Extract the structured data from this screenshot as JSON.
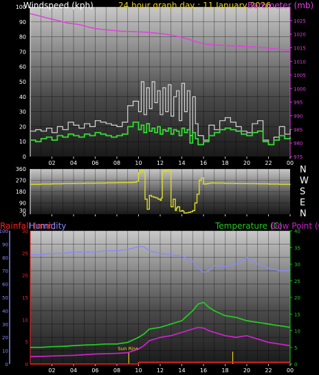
{
  "header": {
    "windspeed_label": "Windspeed (kph)",
    "date_title": "24 hour graph day : 11 January 2026",
    "barometer_label": "Barometer (mb)"
  },
  "direction_letters": [
    "N",
    "W",
    "S",
    "E",
    "N"
  ],
  "lower_labels": {
    "rainfall": "Rainfall (mm)",
    "humidity": "Humidity",
    "temperature": "Temperature (C)",
    "dewpoint": "Dew Point (C)",
    "sunrise": "Sun Rise"
  },
  "colors": {
    "wind_speed": "#d8d8d8",
    "wind_avg": "#33dd33",
    "barometer": "#e040e0",
    "direction": "#dddd22",
    "rainfall": "#ff2020",
    "humidity": "#8888ff",
    "temperature": "#22cc22",
    "dewpoint": "#cc22cc",
    "date_title": "#e8d020"
  },
  "chart_data": [
    {
      "type": "line",
      "title": "24 hour graph day : 11 January 2026",
      "x_hours": [
        0,
        0.5,
        1,
        1.5,
        2,
        2.5,
        3,
        3.5,
        4,
        4.5,
        5,
        5.5,
        6,
        6.5,
        7,
        7.5,
        8,
        8.5,
        9,
        9.5,
        10,
        10.25,
        10.5,
        10.75,
        11,
        11.25,
        11.5,
        11.75,
        12,
        12.25,
        12.5,
        12.75,
        13,
        13.25,
        13.5,
        13.75,
        14,
        14.25,
        14.5,
        14.75,
        15,
        15.25,
        15.5,
        16,
        16.5,
        17,
        17.5,
        18,
        18.5,
        19,
        19.5,
        20,
        20.5,
        21,
        21.5,
        22,
        22.5,
        23,
        23.5,
        24
      ],
      "xtick_labels": [
        "02",
        "04",
        "06",
        "08",
        "10",
        "12",
        "14",
        "16",
        "18",
        "20",
        "22",
        "00"
      ],
      "xtick_hours": [
        2,
        4,
        6,
        8,
        10,
        12,
        14,
        16,
        18,
        20,
        22,
        24
      ],
      "left_axis": {
        "label": "Windspeed (kph)",
        "ylim": [
          0,
          100
        ],
        "ticks": [
          0,
          10,
          20,
          30,
          40,
          50,
          60,
          70,
          80,
          90,
          100
        ]
      },
      "right_axis": {
        "label": "Barometer (mb)",
        "ylim": [
          975,
          1030
        ],
        "ticks": [
          975,
          980,
          985,
          990,
          995,
          1000,
          1005,
          1010,
          1015,
          1020,
          1025
        ]
      },
      "series": [
        {
          "name": "Windspeed (kph)",
          "axis": "left",
          "values": [
            17,
            18,
            17,
            19,
            16,
            20,
            18,
            23,
            21,
            19,
            22,
            20,
            24,
            23,
            22,
            21,
            20,
            23,
            34,
            37,
            30,
            50,
            28,
            46,
            32,
            50,
            36,
            44,
            28,
            46,
            30,
            48,
            27,
            40,
            44,
            24,
            49,
            30,
            44,
            14,
            40,
            22,
            14,
            11,
            21,
            18,
            24,
            26,
            23,
            20,
            17,
            16,
            22,
            24,
            11,
            8,
            13,
            20,
            15,
            18
          ]
        },
        {
          "name": "Wind average",
          "axis": "left",
          "values": [
            11,
            10,
            12,
            13,
            11,
            14,
            13,
            15,
            14,
            13,
            15,
            14,
            16,
            15,
            14,
            13,
            14,
            15,
            20,
            23,
            18,
            21,
            16,
            22,
            17,
            19,
            16,
            20,
            15,
            18,
            17,
            19,
            15,
            18,
            17,
            14,
            19,
            16,
            18,
            9,
            16,
            12,
            8,
            10,
            14,
            16,
            18,
            19,
            18,
            17,
            15,
            14,
            16,
            17,
            10,
            8,
            11,
            14,
            12,
            13
          ]
        },
        {
          "name": "Barometer (mb)",
          "axis": "right",
          "values": [
            1027.5,
            1027,
            1026.5,
            1026,
            1025.5,
            1025,
            1024.5,
            1024,
            1023.8,
            1023.5,
            1023,
            1022.5,
            1022,
            1021.8,
            1021.6,
            1021.4,
            1021.2,
            1021,
            1021,
            1020.9,
            1020.8,
            1020.8,
            1020.7,
            1020.7,
            1020.6,
            1020.5,
            1020.4,
            1020.3,
            1020.2,
            1020.1,
            1020,
            1019.8,
            1019.6,
            1019.4,
            1019.2,
            1019,
            1018.8,
            1018.5,
            1018.2,
            1018,
            1017.6,
            1017.3,
            1017,
            1016.5,
            1016.2,
            1016,
            1015.9,
            1015.8,
            1015.7,
            1015.6,
            1015.5,
            1015.4,
            1015.3,
            1015.2,
            1015,
            1014.8,
            1014.6,
            1014.4,
            1014.2,
            1014
          ]
        }
      ]
    },
    {
      "type": "line",
      "title": "Wind direction",
      "left_axis": {
        "ylim": [
          0,
          360
        ],
        "ticks": [
          0,
          30,
          90,
          180,
          270,
          360
        ]
      },
      "right_labels": [
        "N",
        "W",
        "S",
        "E",
        "N"
      ],
      "xtick_hours": [
        2,
        4,
        6,
        8,
        10,
        12,
        14,
        16,
        18,
        20,
        22,
        24
      ],
      "x_hours": [
        0,
        1,
        2,
        3,
        4,
        5,
        6,
        7,
        8,
        9,
        9.5,
        9.8,
        10,
        10.2,
        10.4,
        10.6,
        10.8,
        11,
        11.2,
        11.4,
        11.6,
        11.8,
        12,
        12.1,
        12.2,
        12.4,
        12.6,
        12.8,
        13,
        13.2,
        13.4,
        13.5,
        13.6,
        13.8,
        14,
        14.1,
        14.2,
        14.4,
        14.6,
        14.8,
        15,
        15.2,
        15.4,
        15.6,
        15.8,
        16,
        16.2,
        16.4,
        16.6,
        16.8,
        17,
        18,
        19,
        20,
        21,
        22,
        23,
        24
      ],
      "series": [
        {
          "name": "Wind direction",
          "values": [
            238,
            240,
            242,
            244,
            245,
            247,
            248,
            250,
            252,
            253,
            255,
            262,
            330,
            350,
            340,
            120,
            40,
            150,
            140,
            135,
            130,
            120,
            110,
            130,
            340,
            345,
            350,
            355,
            60,
            120,
            30,
            50,
            60,
            25,
            30,
            25,
            10,
            12,
            15,
            20,
            30,
            90,
            160,
            270,
            290,
            240,
            242,
            245,
            248,
            250,
            248,
            245,
            244,
            243,
            242,
            240,
            238,
            235
          ]
        }
      ]
    },
    {
      "type": "line",
      "title": "",
      "x_hours": [
        0,
        1,
        2,
        3,
        4,
        5,
        6,
        7,
        8,
        9,
        10,
        10.5,
        11,
        12,
        13,
        14,
        15,
        15.5,
        16,
        16.5,
        17,
        18,
        19,
        20,
        21,
        22,
        23,
        24
      ],
      "xtick_labels": [
        "02",
        "04",
        "06",
        "08",
        "10",
        "12",
        "14",
        "16",
        "18",
        "20",
        "22",
        "00"
      ],
      "xtick_hours": [
        2,
        4,
        6,
        8,
        10,
        12,
        14,
        16,
        18,
        20,
        22,
        24
      ],
      "axes": [
        {
          "label": "Humidity",
          "ylim": [
            0,
            100
          ],
          "ticks": [
            0,
            10,
            20,
            30,
            40,
            50,
            60,
            70,
            80,
            90,
            100
          ]
        },
        {
          "label": "Rainfall (mm)",
          "ylim": [
            0,
            30
          ],
          "ticks": [
            0,
            5,
            10,
            15,
            20,
            25,
            30
          ]
        },
        {
          "label": "Temperature (C)",
          "ylim": [
            0,
            40
          ],
          "ticks": [
            0,
            5,
            10,
            15,
            20,
            25,
            30,
            35,
            40
          ]
        }
      ],
      "series": [
        {
          "name": "Humidity",
          "axis": "Humidity",
          "values": [
            82,
            82,
            83,
            83,
            84,
            84,
            84,
            85,
            85,
            86,
            88,
            88,
            85,
            83,
            82,
            81,
            77,
            72,
            69,
            70,
            74,
            73,
            75,
            80,
            75,
            72,
            70,
            70
          ]
        },
        {
          "name": "Temperature (C)",
          "axis": "Temperature (C)",
          "values": [
            5,
            5,
            5.2,
            5.3,
            5.5,
            5.7,
            5.8,
            6,
            6,
            6.5,
            8,
            9,
            10.5,
            11,
            12,
            13,
            16,
            18,
            18.5,
            17,
            16,
            14.5,
            14,
            13,
            12.5,
            12,
            11.5,
            11
          ]
        },
        {
          "name": "Dew Point (C)",
          "axis": "Temperature (C)",
          "values": [
            2.2,
            2.3,
            2.4,
            2.5,
            2.6,
            2.8,
            3,
            3.1,
            3.2,
            3.4,
            4.5,
            5.5,
            7,
            8,
            8.5,
            9.5,
            10.5,
            11,
            10.8,
            10,
            9.5,
            8.5,
            8,
            8.5,
            7.5,
            6.5,
            6,
            5.5
          ]
        },
        {
          "name": "Rainfall (mm)",
          "axis": "Rainfall (mm)",
          "values": [
            0,
            0,
            0,
            0,
            0,
            0,
            0,
            0,
            0,
            0,
            0.4,
            0.4,
            0.4,
            0.4,
            0.4,
            0.4,
            0.4,
            0.4,
            0.4,
            0.4,
            0.4,
            0.4,
            0.4,
            0.4,
            0.4,
            0.4,
            0.4,
            0.4
          ]
        }
      ],
      "markers": [
        {
          "label": "Sun Rise",
          "x_hour": 9.1
        },
        {
          "label": "",
          "x_hour": 18.7
        }
      ]
    }
  ]
}
